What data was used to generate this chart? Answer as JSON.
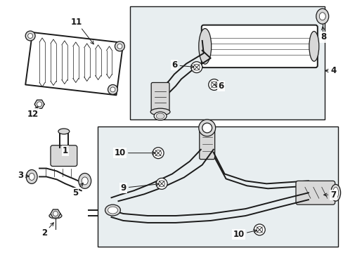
{
  "bg_color": "#ffffff",
  "box_fill": "#e8eef0",
  "line_color": "#1a1a1a",
  "part_fill": "#d8d8d8",
  "white": "#ffffff",
  "fig_width": 4.89,
  "fig_height": 3.6,
  "dpi": 100
}
